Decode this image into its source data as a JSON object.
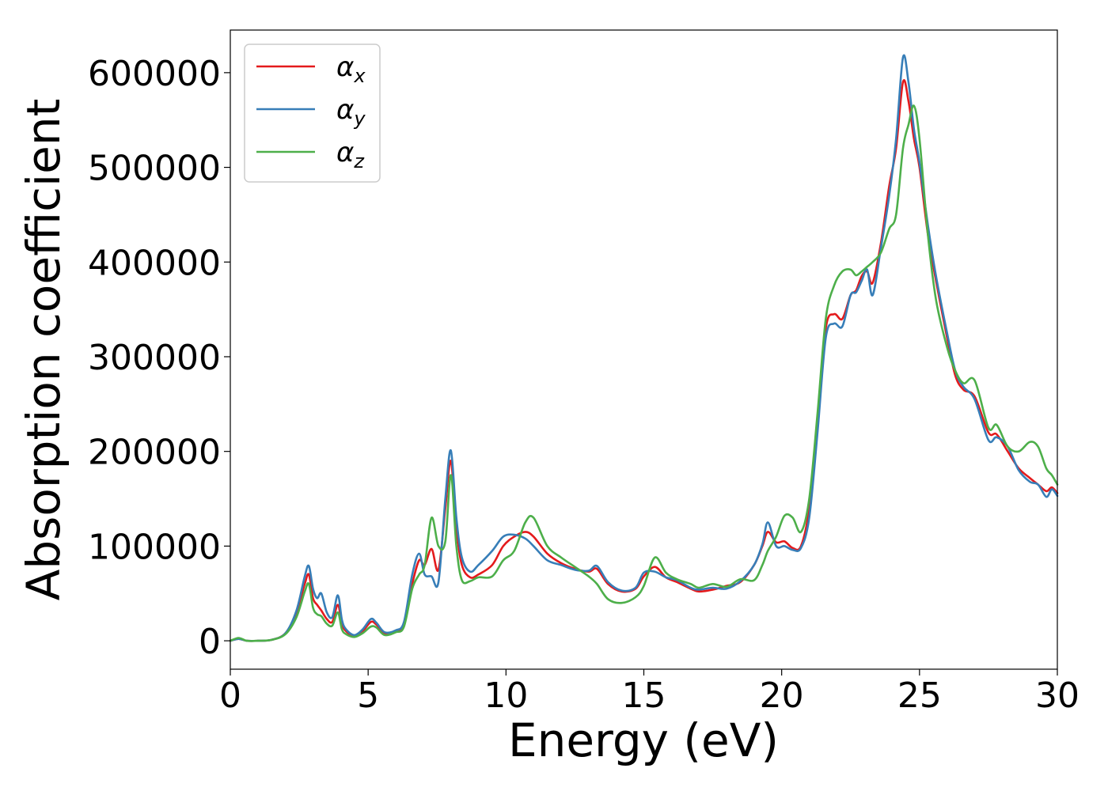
{
  "chart_data": {
    "type": "line",
    "title": "",
    "xlabel": "Energy (eV)",
    "ylabel": "Absorption coefficient",
    "xlim": [
      0,
      30
    ],
    "ylim": [
      -30000,
      645000
    ],
    "xticks": [
      0,
      5,
      10,
      15,
      20,
      25,
      30
    ],
    "yticks": [
      0,
      100000,
      200000,
      300000,
      400000,
      500000,
      600000
    ],
    "grid": false,
    "legend_position": "top-left",
    "series": [
      {
        "name": "αx",
        "name_base": "α",
        "name_sub": "x",
        "color": "#e41a1c",
        "x": [
          0,
          0.3,
          0.6,
          1,
          1.5,
          2,
          2.4,
          2.7,
          2.85,
          3,
          3.15,
          3.3,
          3.5,
          3.7,
          3.9,
          4.05,
          4.2,
          4.5,
          4.8,
          5.1,
          5.3,
          5.6,
          6,
          6.3,
          6.6,
          6.85,
          7.05,
          7.3,
          7.55,
          7.8,
          8,
          8.2,
          8.4,
          8.7,
          9,
          9.5,
          9.9,
          10.3,
          10.7,
          11,
          11.5,
          12,
          12.5,
          13,
          13.3,
          13.7,
          14.2,
          14.7,
          15,
          15.4,
          15.8,
          16.2,
          16.7,
          17,
          17.5,
          18,
          18.5,
          19,
          19.3,
          19.5,
          19.8,
          20.1,
          20.4,
          20.7,
          21,
          21.3,
          21.6,
          21.9,
          22.2,
          22.5,
          22.7,
          22.9,
          23.1,
          23.3,
          23.6,
          23.9,
          24.15,
          24.4,
          24.6,
          24.8,
          25,
          25.3,
          25.6,
          26,
          26.3,
          26.6,
          27,
          27.5,
          27.8,
          28.2,
          28.6,
          29,
          29.3,
          29.6,
          29.8,
          30
        ],
        "y": [
          0,
          2000,
          0,
          0,
          1000,
          8000,
          30000,
          60000,
          70000,
          45000,
          38000,
          32000,
          23000,
          20000,
          38000,
          18000,
          10000,
          5000,
          10000,
          20000,
          17000,
          8000,
          10000,
          18000,
          60000,
          85000,
          80000,
          97000,
          75000,
          140000,
          190000,
          120000,
          80000,
          67000,
          70000,
          80000,
          100000,
          110000,
          115000,
          110000,
          92000,
          82000,
          76000,
          73000,
          76000,
          60000,
          52000,
          55000,
          68000,
          78000,
          67000,
          62000,
          55000,
          52000,
          54000,
          58000,
          62000,
          80000,
          100000,
          115000,
          104000,
          105000,
          98000,
          100000,
          140000,
          230000,
          330000,
          345000,
          340000,
          365000,
          370000,
          385000,
          390000,
          378000,
          420000,
          480000,
          520000,
          590000,
          570000,
          530000,
          500000,
          430000,
          380000,
          320000,
          280000,
          265000,
          258000,
          220000,
          218000,
          200000,
          182000,
          172000,
          165000,
          158000,
          162000,
          156000
        ]
      },
      {
        "name": "αy",
        "name_base": "α",
        "name_sub": "y",
        "color": "#377eb8",
        "x": [
          0,
          0.3,
          0.6,
          1,
          1.5,
          2,
          2.4,
          2.7,
          2.85,
          3,
          3.15,
          3.3,
          3.5,
          3.7,
          3.9,
          4.05,
          4.2,
          4.5,
          4.8,
          5.1,
          5.3,
          5.6,
          6,
          6.3,
          6.6,
          6.85,
          7.05,
          7.3,
          7.55,
          7.8,
          8,
          8.2,
          8.4,
          8.7,
          9,
          9.5,
          9.9,
          10.3,
          10.7,
          11,
          11.5,
          12,
          12.5,
          13,
          13.3,
          13.7,
          14.2,
          14.7,
          15,
          15.4,
          15.8,
          16.2,
          16.7,
          17,
          17.5,
          18,
          18.5,
          19,
          19.3,
          19.5,
          19.8,
          20.1,
          20.4,
          20.7,
          21,
          21.3,
          21.6,
          21.9,
          22.2,
          22.5,
          22.7,
          22.9,
          23.1,
          23.3,
          23.6,
          23.9,
          24.15,
          24.4,
          24.6,
          24.8,
          25,
          25.3,
          25.6,
          26,
          26.3,
          26.6,
          27,
          27.5,
          27.8,
          28.2,
          28.6,
          29,
          29.3,
          29.6,
          29.8,
          30
        ],
        "y": [
          0,
          2000,
          0,
          0,
          1000,
          8000,
          32000,
          68000,
          79000,
          55000,
          45000,
          50000,
          30000,
          25000,
          48000,
          22000,
          12000,
          6000,
          12000,
          23000,
          19000,
          9000,
          11000,
          20000,
          70000,
          92000,
          70000,
          68000,
          62000,
          150000,
          201000,
          130000,
          88000,
          73000,
          80000,
          95000,
          110000,
          112000,
          108000,
          100000,
          85000,
          80000,
          75000,
          74000,
          79000,
          62000,
          53000,
          56000,
          72000,
          73000,
          67000,
          64000,
          56000,
          54000,
          56000,
          55000,
          63000,
          80000,
          102000,
          125000,
          100000,
          100000,
          96000,
          98000,
          130000,
          220000,
          320000,
          335000,
          332000,
          365000,
          368000,
          380000,
          392000,
          365000,
          415000,
          470000,
          530000,
          616000,
          590000,
          540000,
          505000,
          440000,
          385000,
          325000,
          285000,
          268000,
          255000,
          212000,
          215000,
          205000,
          180000,
          168000,
          165000,
          152000,
          160000,
          153000
        ]
      },
      {
        "name": "αz",
        "name_base": "α",
        "name_sub": "z",
        "color": "#4daf4a",
        "x": [
          0,
          0.3,
          0.6,
          1,
          1.5,
          2,
          2.4,
          2.7,
          2.85,
          3,
          3.15,
          3.3,
          3.5,
          3.7,
          3.9,
          4.05,
          4.2,
          4.5,
          4.8,
          5.1,
          5.3,
          5.6,
          6,
          6.3,
          6.6,
          6.85,
          7.05,
          7.3,
          7.55,
          7.8,
          8,
          8.2,
          8.4,
          8.7,
          9,
          9.5,
          9.9,
          10.3,
          10.7,
          11,
          11.5,
          12,
          12.5,
          13,
          13.3,
          13.7,
          14.2,
          14.7,
          15,
          15.4,
          15.8,
          16.2,
          16.7,
          17,
          17.5,
          18,
          18.5,
          19,
          19.3,
          19.5,
          19.8,
          20.1,
          20.4,
          20.7,
          21,
          21.3,
          21.6,
          21.9,
          22.2,
          22.5,
          22.7,
          22.9,
          23.1,
          23.3,
          23.6,
          23.9,
          24.15,
          24.4,
          24.6,
          24.8,
          25,
          25.3,
          25.6,
          26,
          26.3,
          26.6,
          27,
          27.5,
          27.8,
          28.2,
          28.6,
          29,
          29.3,
          29.6,
          29.8,
          30
        ],
        "y": [
          0,
          3000,
          0,
          0,
          1000,
          7000,
          25000,
          52000,
          60000,
          35000,
          28000,
          26000,
          18000,
          16000,
          30000,
          12000,
          7000,
          4000,
          8000,
          15000,
          14000,
          6000,
          9000,
          15000,
          55000,
          70000,
          80000,
          130000,
          100000,
          105000,
          175000,
          100000,
          64000,
          63000,
          67000,
          68000,
          85000,
          95000,
          125000,
          130000,
          100000,
          88000,
          78000,
          68000,
          60000,
          44000,
          40000,
          46000,
          58000,
          88000,
          72000,
          65000,
          60000,
          56000,
          60000,
          57000,
          65000,
          64000,
          80000,
          95000,
          110000,
          132000,
          130000,
          115000,
          150000,
          240000,
          340000,
          375000,
          390000,
          392000,
          386000,
          390000,
          395000,
          400000,
          410000,
          435000,
          450000,
          520000,
          545000,
          565000,
          530000,
          430000,
          360000,
          310000,
          285000,
          272000,
          275000,
          225000,
          228000,
          205000,
          200000,
          210000,
          205000,
          182000,
          175000,
          165000
        ]
      }
    ]
  }
}
